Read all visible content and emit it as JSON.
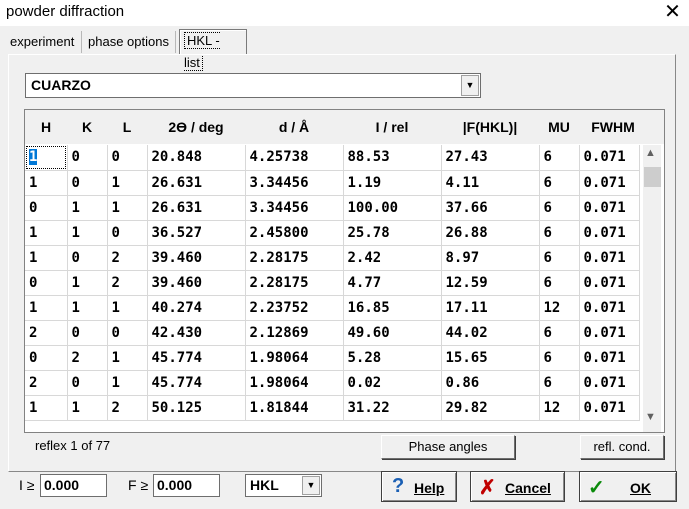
{
  "window": {
    "title": "powder diffraction",
    "close_glyph": "✕"
  },
  "tabs": [
    {
      "label": "experiment"
    },
    {
      "label": "phase options"
    },
    {
      "label": "HKL - list"
    }
  ],
  "phase_select": {
    "value": "CUARZO",
    "arrow": "▼"
  },
  "table": {
    "columns": [
      "H",
      "K",
      "L",
      "2ϴ / deg",
      "d / Å",
      "I / rel",
      "|F(HKL)|",
      "MU",
      "FWHM"
    ],
    "rows": [
      [
        "1",
        "0",
        "0",
        "20.848",
        "4.25738",
        "88.53",
        "27.43",
        "6",
        "0.071"
      ],
      [
        "1",
        "0",
        "1",
        "26.631",
        "3.34456",
        "1.19",
        "4.11",
        "6",
        "0.071"
      ],
      [
        "0",
        "1",
        "1",
        "26.631",
        "3.34456",
        "100.00",
        "37.66",
        "6",
        "0.071"
      ],
      [
        "1",
        "1",
        "0",
        "36.527",
        "2.45800",
        "25.78",
        "26.88",
        "6",
        "0.071"
      ],
      [
        "1",
        "0",
        "2",
        "39.460",
        "2.28175",
        "2.42",
        "8.97",
        "6",
        "0.071"
      ],
      [
        "0",
        "1",
        "2",
        "39.460",
        "2.28175",
        "4.77",
        "12.59",
        "6",
        "0.071"
      ],
      [
        "1",
        "1",
        "1",
        "40.274",
        "2.23752",
        "16.85",
        "17.11",
        "12",
        "0.071"
      ],
      [
        "2",
        "0",
        "0",
        "42.430",
        "2.12869",
        "49.60",
        "44.02",
        "6",
        "0.071"
      ],
      [
        "0",
        "2",
        "1",
        "45.774",
        "1.98064",
        "5.28",
        "15.65",
        "6",
        "0.071"
      ],
      [
        "2",
        "0",
        "1",
        "45.774",
        "1.98064",
        "0.02",
        "0.86",
        "6",
        "0.071"
      ],
      [
        "1",
        "1",
        "2",
        "50.125",
        "1.81844",
        "31.22",
        "29.82",
        "12",
        "0.071"
      ]
    ]
  },
  "scrollbar": {
    "up": "▲",
    "down": "▼"
  },
  "reflex_status": "reflex  1 of 77",
  "buttons": {
    "phase_angles": "Phase angles",
    "refl_cond": "refl. cond.",
    "help": "Help",
    "cancel": "Cancel",
    "ok": "OK"
  },
  "filters": {
    "i_label": "I ≥",
    "i_value": "0.000",
    "f_label": "F ≥",
    "f_value": "0.000",
    "mode_value": "HKL"
  },
  "icons": {
    "help": "?",
    "cancel": "✗",
    "ok": "✓"
  },
  "colors": {
    "selection": "#0078d7",
    "help_icon": "#1a5fb4",
    "cancel_icon": "#c00000",
    "ok_icon": "#0a8a0a"
  }
}
